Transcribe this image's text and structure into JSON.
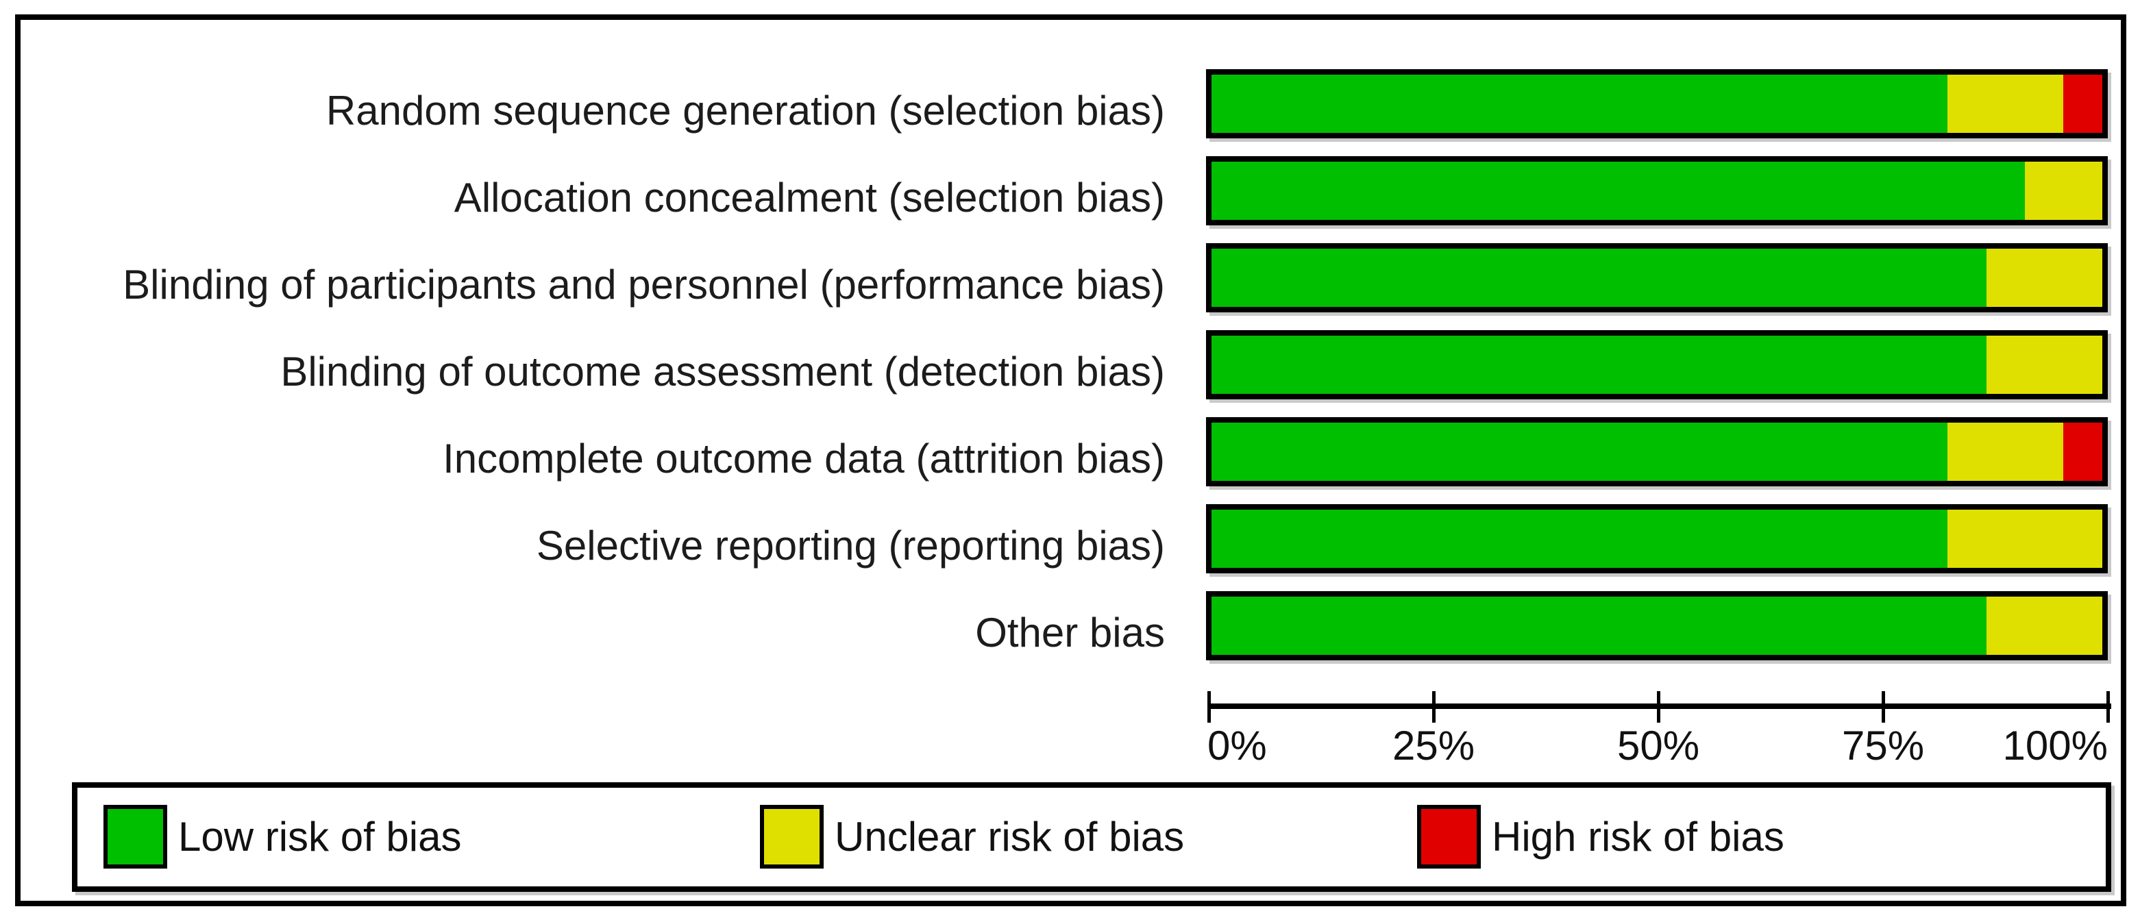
{
  "chart_data": {
    "type": "bar",
    "orientation": "horizontal",
    "stacked": true,
    "unit": "percent of studies",
    "categories": [
      "Random sequence generation (selection bias)",
      "Allocation concealment (selection bias)",
      "Blinding of participants and personnel (performance bias)",
      "Blinding of outcome assessment (detection bias)",
      "Incomplete outcome data (attrition bias)",
      "Selective reporting (reporting bias)",
      "Other bias"
    ],
    "series": [
      {
        "name": "Low risk of bias",
        "color": "#00BE00",
        "values": [
          82.6,
          91.3,
          87.0,
          87.0,
          82.6,
          82.6,
          87.0
        ]
      },
      {
        "name": "Unclear risk of bias",
        "color": "#E0E000",
        "values": [
          13.0,
          8.7,
          13.0,
          13.0,
          13.0,
          17.4,
          13.0
        ]
      },
      {
        "name": "High risk of bias",
        "color": "#E00000",
        "values": [
          4.3,
          0.0,
          0.0,
          0.0,
          4.3,
          0.0,
          0.0
        ]
      }
    ],
    "x_axis": {
      "tick_labels": [
        "0%",
        "25%",
        "50%",
        "75%",
        "100%"
      ],
      "range": [
        0,
        100
      ]
    },
    "grid": false,
    "legend_position": "bottom-box"
  },
  "legend": {
    "items": [
      {
        "label": "Low risk of bias",
        "color": "#00BE00"
      },
      {
        "label": "Unclear risk of bias",
        "color": "#E0E000"
      },
      {
        "label": "High risk of bias",
        "color": "#E00000"
      }
    ]
  },
  "colors": {
    "frame": "#000000",
    "text": "#111111",
    "shadow": "#c9c9c9"
  }
}
